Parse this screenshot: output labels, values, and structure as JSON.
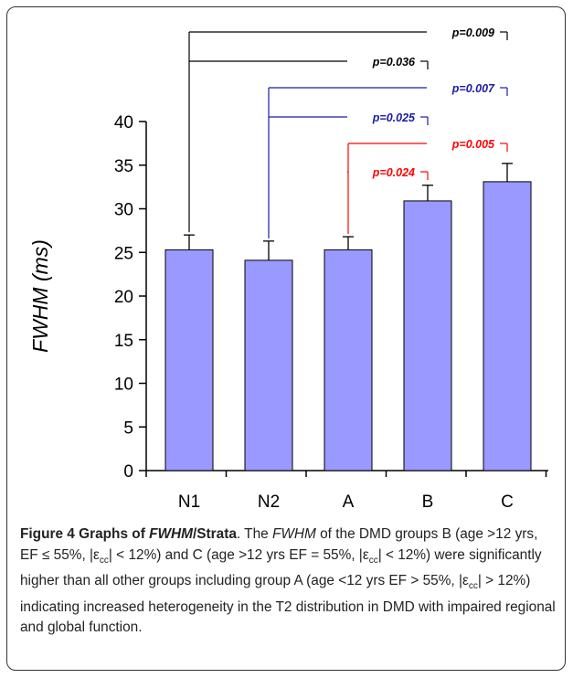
{
  "chart_data": {
    "type": "bar",
    "categories": [
      "N1",
      "N2",
      "A",
      "B",
      "C"
    ],
    "values": [
      25.3,
      24.1,
      25.3,
      30.9,
      33.1
    ],
    "errors": [
      1.7,
      2.2,
      1.5,
      1.8,
      2.1
    ],
    "ylabel": "FWHM (ms)",
    "ylim": [
      0,
      40
    ],
    "yticks": [
      "0",
      "5",
      "10",
      "15",
      "20",
      "25",
      "30",
      "35",
      "40"
    ],
    "bar_color": "#9999ff",
    "comparisons": [
      {
        "from": "N1",
        "to": "C",
        "label": "p=0.009",
        "color": "#000000"
      },
      {
        "from": "N1",
        "to": "B",
        "label": "p=0.036",
        "color": "#000000"
      },
      {
        "from": "N2",
        "to": "C",
        "label": "p=0.007",
        "color": "#1a1aa6"
      },
      {
        "from": "N2",
        "to": "B",
        "label": "p=0.025",
        "color": "#1a1aa6"
      },
      {
        "from": "A",
        "to": "C",
        "label": "p=0.005",
        "color": "#ff0000"
      },
      {
        "from": "A",
        "to": "B",
        "label": "p=0.024",
        "color": "#ff0000"
      }
    ]
  },
  "caption": {
    "bold_prefix": "Figure 4 Graphs of ",
    "bold_italic": "FWHM",
    "bold_suffix": "/Strata",
    "p1": ". The ",
    "p1_italic": "FWHM",
    "p2": " of the DMD groups B (age >12 yrs, EF ≤ 55%, |",
    "eps": "ε",
    "cc": "cc",
    "p3": "| < 12%) and C (age >12 yrs EF = 55%, |",
    "p4": "| < 12%) were significantly higher than all other groups including group A (age <12 yrs EF > 55%, |",
    "p5": "| > 12%) indicating increased heterogeneity in the T2 distribution in DMD with impaired regional and global function."
  }
}
